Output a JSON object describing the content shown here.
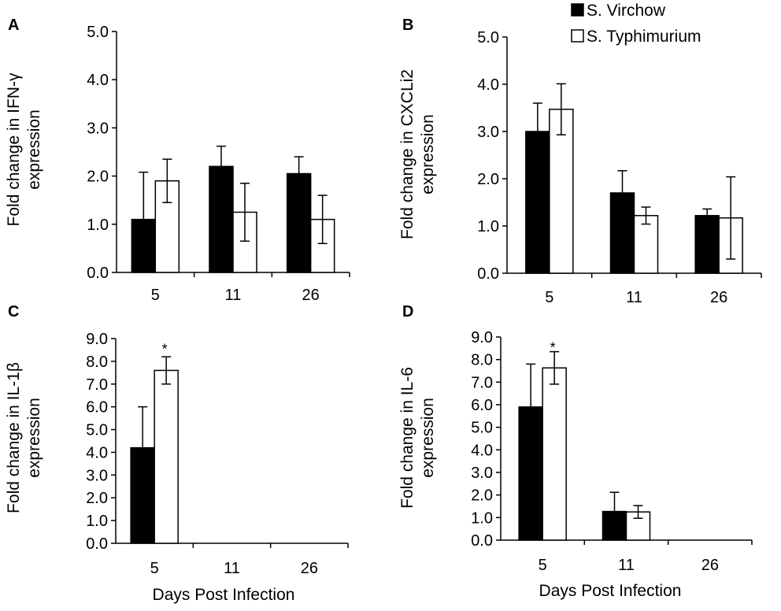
{
  "legend": {
    "series_1": "S. Virchow",
    "series_2": "S. Typhimurium",
    "colors": {
      "S. Virchow": "#000000",
      "S. Typhimurium": "#ffffff"
    }
  },
  "chart_data": [
    {
      "panel": "A",
      "type": "bar",
      "title": "",
      "ylabel": [
        "Fold change in IFN-γ",
        "expression"
      ],
      "xlabel": "",
      "categories": [
        "5",
        "11",
        "26"
      ],
      "ylim": [
        0,
        5
      ],
      "yticks": [
        "0.0",
        "1.0",
        "2.0",
        "3.0",
        "4.0",
        "5.0"
      ],
      "series": [
        {
          "name": "S. Virchow",
          "values": [
            1.1,
            2.2,
            2.05
          ],
          "errors": [
            0.98,
            0.42,
            0.35
          ]
        },
        {
          "name": "S. Typhimurium",
          "values": [
            1.9,
            1.25,
            1.1
          ],
          "errors": [
            0.45,
            0.6,
            0.5
          ]
        }
      ],
      "annotations": []
    },
    {
      "panel": "B",
      "type": "bar",
      "title": "",
      "ylabel": [
        "Fold change in CXCLi2",
        "expression"
      ],
      "xlabel": "",
      "categories": [
        "5",
        "11",
        "26"
      ],
      "ylim": [
        0,
        5
      ],
      "yticks": [
        "0.0",
        "1.0",
        "2.0",
        "3.0",
        "4.0",
        "5.0"
      ],
      "series": [
        {
          "name": "S. Virchow",
          "values": [
            3.0,
            1.7,
            1.22
          ],
          "errors": [
            0.6,
            0.47,
            0.14
          ]
        },
        {
          "name": "S. Typhimurium",
          "values": [
            3.47,
            1.22,
            1.17
          ],
          "errors": [
            0.54,
            0.18,
            0.87
          ]
        }
      ],
      "annotations": []
    },
    {
      "panel": "C",
      "type": "bar",
      "title": "",
      "ylabel": [
        "Fold change in IL-1β",
        "expression"
      ],
      "xlabel": "Days Post Infection",
      "categories": [
        "5",
        "11",
        "26"
      ],
      "ylim": [
        0,
        9
      ],
      "yticks": [
        "0.0",
        "1.0",
        "2.0",
        "3.0",
        "4.0",
        "5.0",
        "6.0",
        "7.0",
        "8.0",
        "9.0"
      ],
      "series": [
        {
          "name": "S. Virchow",
          "values": [
            4.2,
            null,
            null
          ],
          "errors": [
            1.8,
            null,
            null
          ]
        },
        {
          "name": "S. Typhimurium",
          "values": [
            7.6,
            null,
            null
          ],
          "errors": [
            0.6,
            null,
            null
          ]
        }
      ],
      "annotations": [
        {
          "text": "*",
          "category": "5",
          "series": "S. Typhimurium",
          "y": 8.6
        }
      ]
    },
    {
      "panel": "D",
      "type": "bar",
      "title": "",
      "ylabel": [
        "Fold change in IL-6",
        "expression"
      ],
      "xlabel": "Days Post Infection",
      "categories": [
        "5",
        "11",
        "26"
      ],
      "ylim": [
        0,
        9
      ],
      "yticks": [
        "0.0",
        "1.0",
        "2.0",
        "3.0",
        "4.0",
        "5.0",
        "6.0",
        "7.0",
        "8.0",
        "9.0"
      ],
      "series": [
        {
          "name": "S. Virchow",
          "values": [
            5.9,
            1.27,
            null
          ],
          "errors": [
            1.9,
            0.85,
            null
          ]
        },
        {
          "name": "S. Typhimurium",
          "values": [
            7.63,
            1.25,
            null
          ],
          "errors": [
            0.72,
            0.28,
            null
          ]
        }
      ],
      "annotations": [
        {
          "text": "*",
          "category": "5",
          "series": "S. Typhimurium",
          "y": 8.6
        }
      ]
    }
  ]
}
